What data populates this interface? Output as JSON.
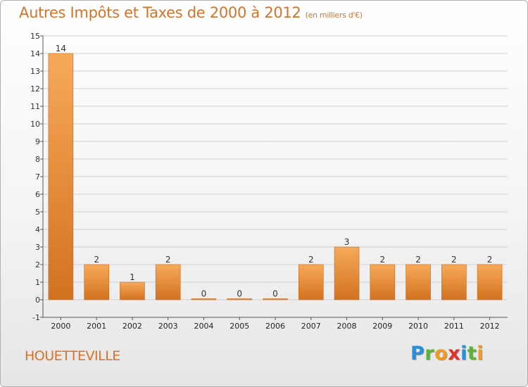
{
  "header": {
    "title": "Autres Impôts et Taxes de 2000 à 2012",
    "subtitle": "(en milliers d'€)"
  },
  "footer": {
    "commune": "HOUETTEVILLE",
    "logo_letters": [
      "P",
      "r",
      "o",
      "x",
      "i",
      "t",
      "i"
    ],
    "logo_colors": [
      "#2a8fd6",
      "#5bb531",
      "#f29a1d",
      "#e0322a",
      "#2a8fd6",
      "#5bb531",
      "#f29a1d"
    ]
  },
  "colors": {
    "accent": "#d4742a",
    "bar_light": "#f7a95a",
    "bar_dark": "#d2721f",
    "grid": "#cfcfcf"
  },
  "chart_data": {
    "type": "bar",
    "title": "Autres Impôts et Taxes de 2000 à 2012",
    "subtitle": "(en milliers d'€)",
    "categories": [
      "2000",
      "2001",
      "2002",
      "2003",
      "2004",
      "2005",
      "2006",
      "2007",
      "2008",
      "2009",
      "2010",
      "2011",
      "2012"
    ],
    "values": [
      14,
      2,
      1,
      2,
      0,
      0,
      0,
      2,
      3,
      2,
      2,
      2,
      2
    ],
    "ylim": [
      -1,
      15
    ],
    "yticks": [
      "-1",
      "0",
      "1",
      "2",
      "3",
      "4",
      "5",
      "6",
      "7",
      "8",
      "9",
      "10",
      "11",
      "12",
      "13",
      "14",
      "15"
    ],
    "grid": true,
    "data_labels": true
  }
}
